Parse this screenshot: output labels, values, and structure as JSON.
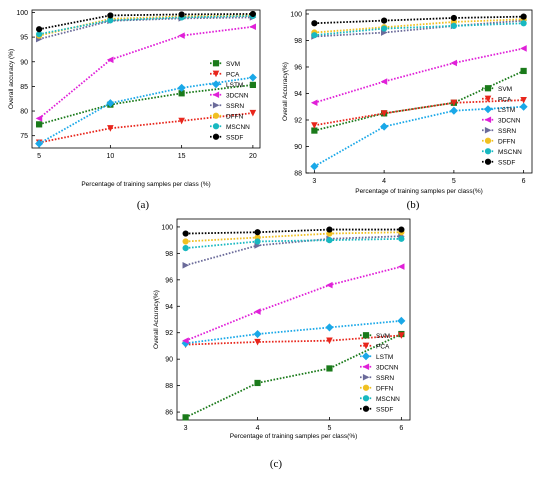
{
  "chart_data": [
    {
      "type": "line",
      "panel_label": "(a)",
      "xlabel": "Percentage of training samples per class (%)",
      "ylabel": "Overall accuracy (%)",
      "x": [
        5,
        10,
        15,
        20
      ],
      "xticks": [
        "5",
        "10",
        "15",
        "20"
      ],
      "xlim": [
        4.5,
        20.5
      ],
      "yticks": [
        "75",
        "80",
        "85",
        "90",
        "95",
        "100"
      ],
      "ytick_values": [
        75,
        80,
        85,
        90,
        95,
        100
      ],
      "ylim": [
        72.5,
        100.5
      ],
      "grid": false,
      "legend_position": "bottom-right",
      "series": [
        {
          "name": "SVM",
          "color": "#1a7a1a",
          "marker": "square",
          "values": [
            77.3,
            81.3,
            83.6,
            85.3
          ]
        },
        {
          "name": "PCA",
          "color": "#e8261c",
          "marker": "triangle-down",
          "values": [
            73.6,
            76.5,
            78.0,
            79.6
          ]
        },
        {
          "name": "LSTM",
          "color": "#1aa8e8",
          "marker": "diamond",
          "values": [
            73.4,
            81.6,
            84.7,
            86.8
          ]
        },
        {
          "name": "3DCNN",
          "color": "#e020d8",
          "marker": "triangle-left",
          "values": [
            78.5,
            90.4,
            95.3,
            97.1
          ]
        },
        {
          "name": "SSRN",
          "color": "#6b6b9a",
          "marker": "triangle-right",
          "values": [
            94.6,
            98.3,
            98.8,
            99.0
          ]
        },
        {
          "name": "DFFN",
          "color": "#f0c020",
          "marker": "circle",
          "values": [
            95.3,
            98.7,
            99.2,
            99.4
          ]
        },
        {
          "name": "MSCNN",
          "color": "#18b8c0",
          "marker": "circle",
          "values": [
            95.6,
            98.4,
            99.0,
            99.3
          ]
        },
        {
          "name": "SSDF",
          "color": "#000000",
          "marker": "circle",
          "values": [
            96.6,
            99.4,
            99.6,
            99.7
          ]
        }
      ]
    },
    {
      "type": "line",
      "panel_label": "(b)",
      "xlabel": "Percentage of training samples per class(%)",
      "ylabel": "Overall Accuracy(%)",
      "x": [
        3,
        4,
        5,
        6
      ],
      "xticks": [
        "3",
        "4",
        "5",
        "6"
      ],
      "xlim": [
        2.88,
        6.12
      ],
      "yticks": [
        "88",
        "90",
        "92",
        "94",
        "96",
        "98",
        "100"
      ],
      "ytick_values": [
        88,
        90,
        92,
        94,
        96,
        98,
        100
      ],
      "ylim": [
        88,
        100.3
      ],
      "grid": false,
      "legend_position": "bottom-right",
      "series": [
        {
          "name": "SVM",
          "color": "#1a7a1a",
          "marker": "square",
          "values": [
            91.2,
            92.5,
            93.3,
            95.7
          ]
        },
        {
          "name": "PCA",
          "color": "#e8261c",
          "marker": "triangle-down",
          "values": [
            91.6,
            92.5,
            93.3,
            93.5
          ]
        },
        {
          "name": "LSTM",
          "color": "#1aa8e8",
          "marker": "diamond",
          "values": [
            88.5,
            91.5,
            92.7,
            93.0
          ]
        },
        {
          "name": "3DCNN",
          "color": "#e020d8",
          "marker": "triangle-left",
          "values": [
            93.3,
            94.9,
            96.3,
            97.4
          ]
        },
        {
          "name": "SSRN",
          "color": "#6b6b9a",
          "marker": "triangle-right",
          "values": [
            98.3,
            98.6,
            99.1,
            99.5
          ]
        },
        {
          "name": "DFFN",
          "color": "#f0c020",
          "marker": "circle",
          "values": [
            98.6,
            99.0,
            99.4,
            99.6
          ]
        },
        {
          "name": "MSCNN",
          "color": "#18b8c0",
          "marker": "circle",
          "values": [
            98.4,
            98.9,
            99.1,
            99.3
          ]
        },
        {
          "name": "SSDF",
          "color": "#000000",
          "marker": "circle",
          "values": [
            99.3,
            99.5,
            99.7,
            99.8
          ]
        }
      ]
    },
    {
      "type": "line",
      "panel_label": "(c)",
      "xlabel": "Percentage of training samples per class(%)",
      "ylabel": "Overall Accuracy(%)",
      "x": [
        3,
        4,
        5,
        6
      ],
      "xticks": [
        "3",
        "4",
        "5",
        "6"
      ],
      "xlim": [
        2.88,
        6.12
      ],
      "yticks": [
        "86",
        "88",
        "90",
        "92",
        "94",
        "96",
        "98",
        "100"
      ],
      "ytick_values": [
        86,
        88,
        90,
        92,
        94,
        96,
        98,
        100
      ],
      "ylim": [
        85.4,
        100.6
      ],
      "grid": false,
      "legend_position": "bottom-right",
      "series": [
        {
          "name": "SVM",
          "color": "#1a7a1a",
          "marker": "square",
          "values": [
            85.6,
            88.2,
            89.3,
            91.9
          ]
        },
        {
          "name": "PCA",
          "color": "#e8261c",
          "marker": "triangle-down",
          "values": [
            91.1,
            91.3,
            91.4,
            91.8
          ]
        },
        {
          "name": "LSTM",
          "color": "#1aa8e8",
          "marker": "diamond",
          "values": [
            91.2,
            91.9,
            92.4,
            92.9
          ]
        },
        {
          "name": "3DCNN",
          "color": "#e020d8",
          "marker": "triangle-left",
          "values": [
            91.4,
            93.6,
            95.6,
            97.0
          ]
        },
        {
          "name": "SSRN",
          "color": "#6b6b9a",
          "marker": "triangle-right",
          "values": [
            97.1,
            98.6,
            99.1,
            99.3
          ]
        },
        {
          "name": "DFFN",
          "color": "#f0c020",
          "marker": "circle",
          "values": [
            98.9,
            99.2,
            99.5,
            99.6
          ]
        },
        {
          "name": "MSCNN",
          "color": "#18b8c0",
          "marker": "circle",
          "values": [
            98.4,
            98.9,
            99.0,
            99.1
          ]
        },
        {
          "name": "SSDF",
          "color": "#000000",
          "marker": "circle",
          "values": [
            99.5,
            99.6,
            99.8,
            99.8
          ]
        }
      ]
    }
  ]
}
